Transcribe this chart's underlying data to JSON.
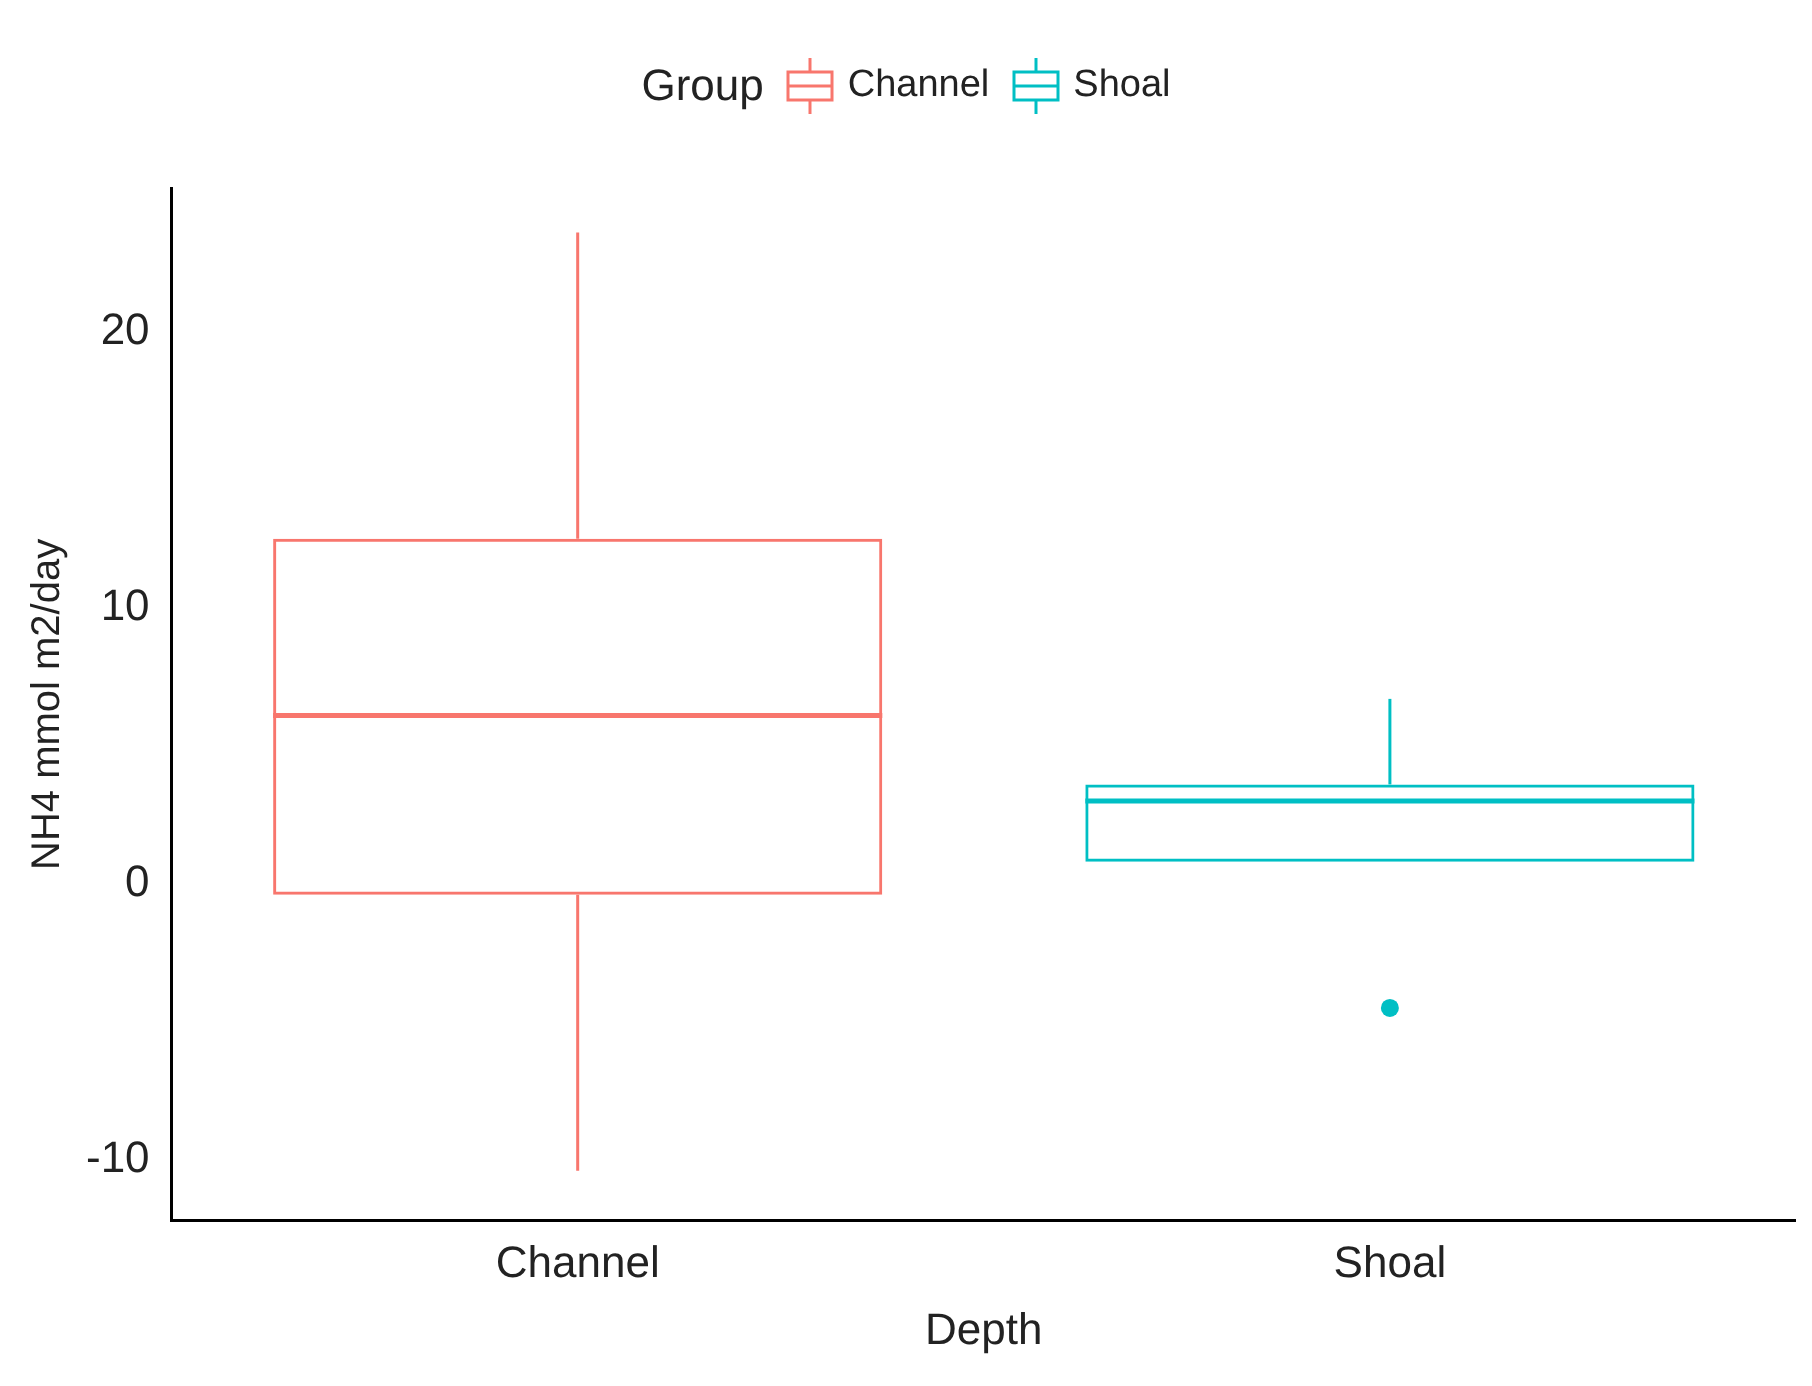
{
  "chart_data": {
    "type": "box",
    "xlabel": "Depth",
    "ylabel": "NH4 mmol m2/day",
    "legend_title": "Group",
    "legend": "top",
    "grid": false,
    "categories": [
      "Channel",
      "Shoal"
    ],
    "ylim": [
      -12.2,
      25.2
    ],
    "yticks": [
      -10,
      0,
      10,
      20
    ],
    "series": [
      {
        "name": "Channel",
        "color": "#f8766d",
        "boxes": [
          {
            "low": -10.4,
            "q1": -0.4,
            "median": 6.1,
            "q3": 12.5,
            "high": 23.6
          },
          null
        ]
      },
      {
        "name": "Shoal",
        "color": "#00bfc4",
        "boxes": [
          null,
          {
            "low": 0.8,
            "q1": 0.8,
            "median": 3.0,
            "q3": 3.6,
            "high": 6.7,
            "outliers": [
              -4.5
            ]
          }
        ]
      }
    ]
  }
}
